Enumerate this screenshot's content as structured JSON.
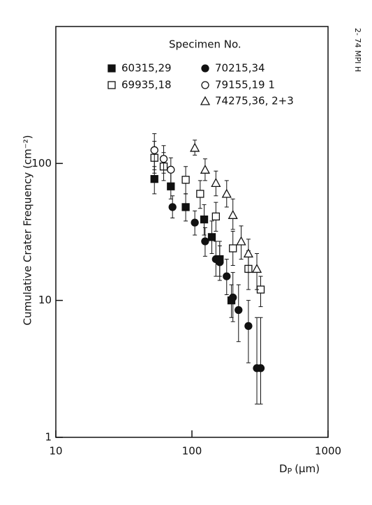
{
  "chart_data": {
    "type": "scatter",
    "y_label": "Cumulative Crater Frequency (cm⁻²)",
    "x_label": {
      "main": "D",
      "subscript": "P",
      "unit": "(μm)"
    },
    "side_note": "2- 74 MPI H",
    "legend_title": "Specimen No.",
    "log_x": true,
    "log_y": true,
    "xlim": [
      10,
      1000
    ],
    "xticks": [
      10,
      100,
      1000
    ],
    "ylim": [
      1,
      1000
    ],
    "yticks": [
      1,
      10,
      100
    ],
    "series": [
      {
        "name": "60315,29",
        "marker": "square",
        "filled": true,
        "color": "#111",
        "x": [
          53,
          70,
          90,
          123,
          140,
          160,
          195
        ],
        "values": [
          77,
          68,
          48,
          39,
          29,
          20,
          10
        ],
        "err_low": [
          60,
          55,
          38,
          30,
          22,
          15,
          7.5
        ],
        "err_high": [
          95,
          88,
          60,
          50,
          38,
          27,
          13
        ]
      },
      {
        "name": "69935,18",
        "marker": "square",
        "filled": false,
        "color": "#111",
        "x": [
          53,
          62,
          90,
          115,
          150,
          200,
          260,
          320
        ],
        "values": [
          110,
          95,
          76,
          60,
          41,
          24,
          17,
          12
        ],
        "err_low": [
          85,
          75,
          60,
          47,
          32,
          18,
          12,
          9
        ],
        "err_high": [
          145,
          120,
          95,
          75,
          52,
          32,
          23,
          15
        ]
      },
      {
        "name": "70215,34",
        "marker": "circle",
        "filled": true,
        "color": "#111",
        "x": [
          72,
          105,
          125,
          150,
          160,
          180,
          200,
          220,
          260,
          300,
          320
        ],
        "values": [
          48,
          37,
          27,
          20,
          19,
          15,
          10.5,
          8.5,
          6.5,
          3.2,
          3.2
        ],
        "err_low": [
          40,
          30,
          21,
          15,
          14,
          11,
          7,
          5,
          3.5,
          1.75,
          1.75
        ],
        "err_high": [
          58,
          45,
          34,
          27,
          25,
          20,
          16,
          13,
          10,
          7.5,
          7.5
        ]
      },
      {
        "name": "79155,19 1",
        "marker": "circle",
        "filled": false,
        "color": "#111",
        "x": [
          53,
          62,
          70
        ],
        "values": [
          125,
          108,
          90
        ],
        "err_low": [
          90,
          85,
          70
        ],
        "err_high": [
          165,
          135,
          110
        ]
      },
      {
        "name": "74275,36, 2+3",
        "marker": "triangle",
        "filled": false,
        "color": "#111",
        "x": [
          105,
          125,
          150,
          180,
          200,
          230,
          260,
          300
        ],
        "values": [
          130,
          90,
          72,
          60,
          42,
          27,
          22,
          17
        ],
        "err_low": [
          115,
          75,
          58,
          48,
          33,
          20,
          16,
          12
        ],
        "err_high": [
          148,
          108,
          88,
          75,
          55,
          35,
          28,
          22
        ]
      }
    ]
  }
}
